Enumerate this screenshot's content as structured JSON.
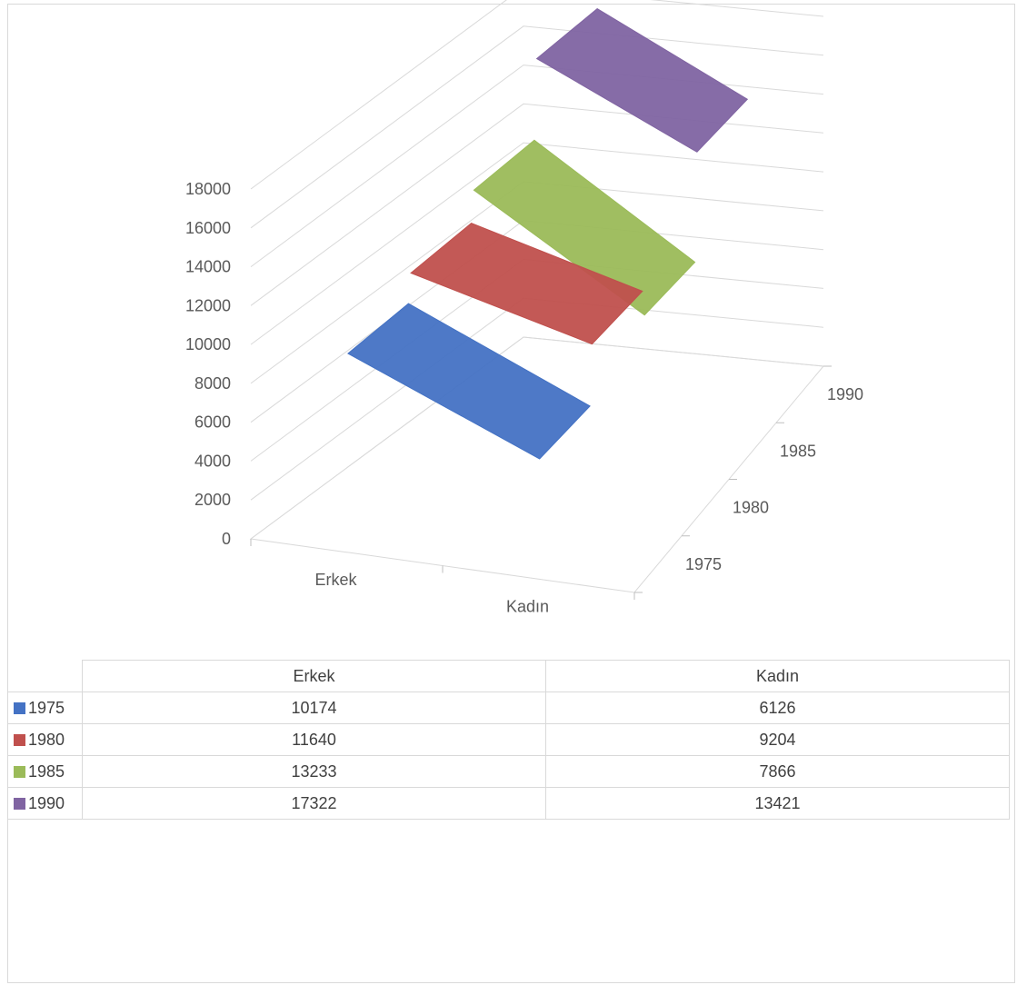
{
  "chart_data": {
    "type": "3d-line",
    "categories": [
      "Erkek",
      "Kadın"
    ],
    "series": [
      {
        "name": "1975",
        "values": [
          10174,
          6126
        ],
        "color": "#4472c4"
      },
      {
        "name": "1980",
        "values": [
          11640,
          9204
        ],
        "color": "#c0504d"
      },
      {
        "name": "1985",
        "values": [
          13233,
          7866
        ],
        "color": "#9bbb59"
      },
      {
        "name": "1990",
        "values": [
          17322,
          13421
        ],
        "color": "#8064a2"
      }
    ],
    "y_ticks": [
      "0",
      "2000",
      "4000",
      "6000",
      "8000",
      "10000",
      "12000",
      "14000",
      "16000",
      "18000"
    ],
    "ylim": [
      0,
      18000
    ],
    "grid": true,
    "legend": "data-table"
  },
  "table": {
    "headers": [
      "Erkek",
      "Kadın"
    ],
    "rows": [
      {
        "key": "1975",
        "color": "#4472c4",
        "values": [
          "10174",
          "6126"
        ]
      },
      {
        "key": "1980",
        "color": "#c0504d",
        "values": [
          "11640",
          "9204"
        ]
      },
      {
        "key": "1985",
        "color": "#9bbb59",
        "values": [
          "13233",
          "7866"
        ]
      },
      {
        "key": "1990",
        "color": "#8064a2",
        "values": [
          "17322",
          "13421"
        ]
      }
    ]
  }
}
